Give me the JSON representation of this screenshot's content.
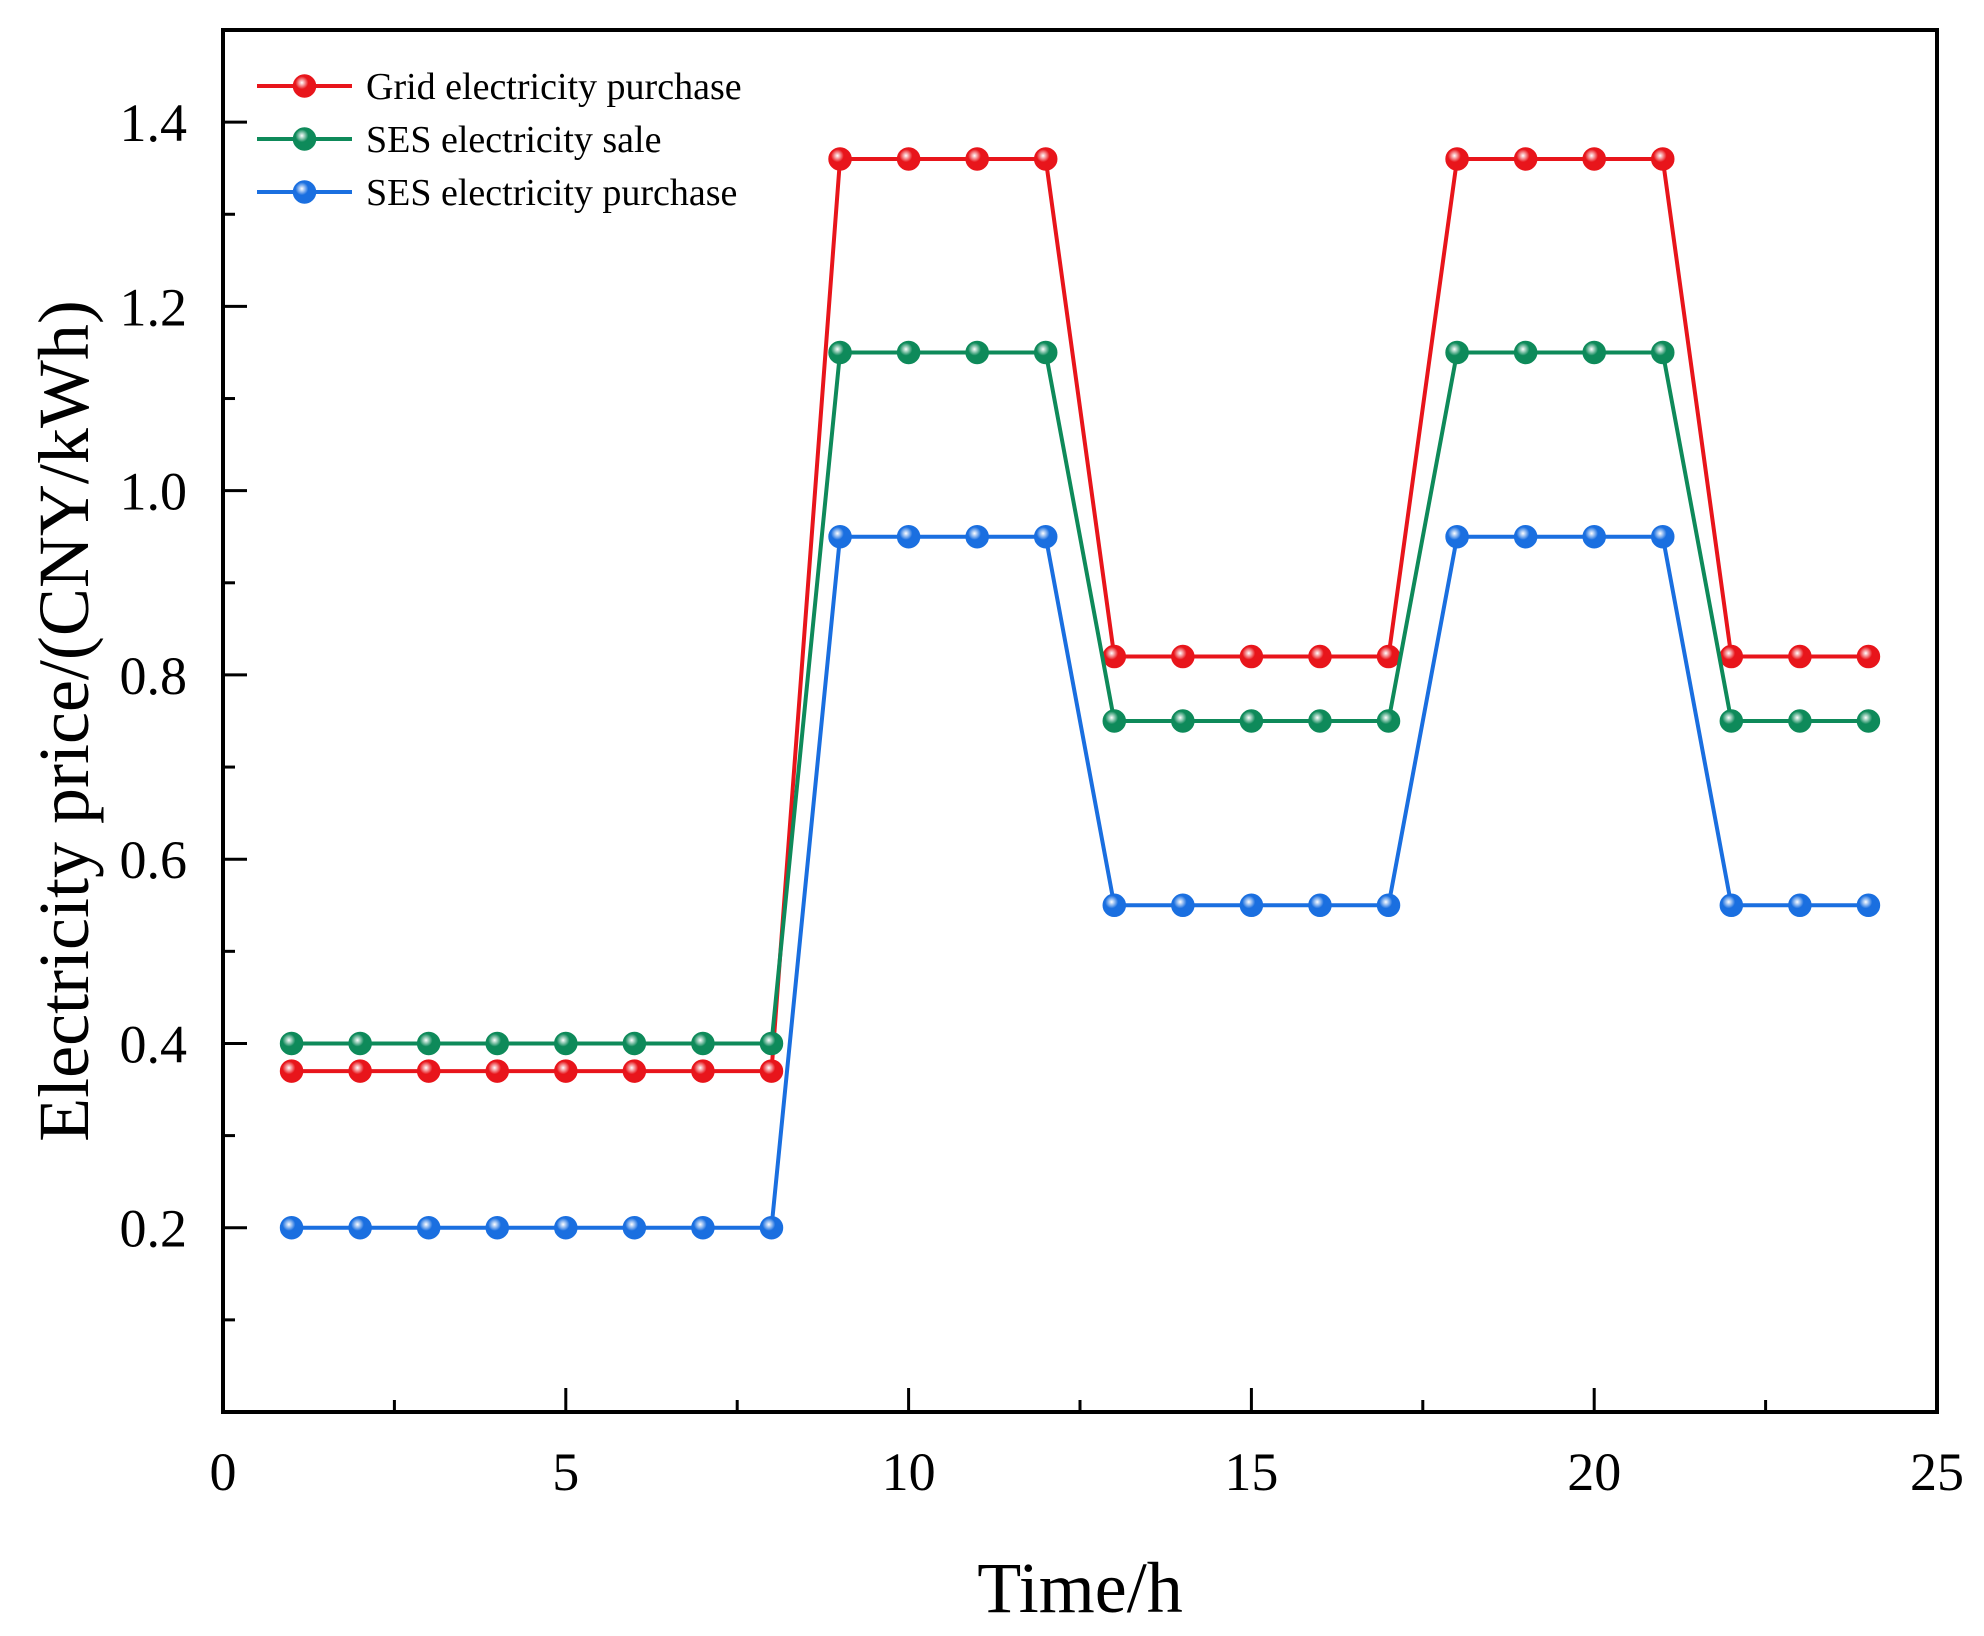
{
  "chart_data": {
    "type": "line",
    "title": "",
    "xlabel": "Time/h",
    "ylabel": "Electricity price/(CNY/kWh)",
    "xlim": [
      0,
      25
    ],
    "ylim": [
      0.0,
      1.5
    ],
    "xticks": [
      0,
      5,
      10,
      15,
      20,
      25
    ],
    "xtick_labels": [
      "0",
      "5",
      "10",
      "15",
      "20",
      "25"
    ],
    "yticks": [
      0.2,
      0.4,
      0.6,
      0.8,
      1.0,
      1.2,
      1.4
    ],
    "ytick_labels": [
      "0.2",
      "0.4",
      "0.6",
      "0.8",
      "1.0",
      "1.2",
      "1.4"
    ],
    "grid": false,
    "legend_position": "top-left",
    "x": [
      1,
      2,
      3,
      4,
      5,
      6,
      7,
      8,
      9,
      10,
      11,
      12,
      13,
      14,
      15,
      16,
      17,
      18,
      19,
      20,
      21,
      22,
      23,
      24
    ],
    "series": [
      {
        "name": "Grid electricity purchase",
        "color": "#e8151b",
        "values": [
          0.37,
          0.37,
          0.37,
          0.37,
          0.37,
          0.37,
          0.37,
          0.37,
          1.36,
          1.36,
          1.36,
          1.36,
          0.82,
          0.82,
          0.82,
          0.82,
          0.82,
          1.36,
          1.36,
          1.36,
          1.36,
          0.82,
          0.82,
          0.82
        ]
      },
      {
        "name": "SES electricity sale",
        "color": "#0e8a5a",
        "values": [
          0.4,
          0.4,
          0.4,
          0.4,
          0.4,
          0.4,
          0.4,
          0.4,
          1.15,
          1.15,
          1.15,
          1.15,
          0.75,
          0.75,
          0.75,
          0.75,
          0.75,
          1.15,
          1.15,
          1.15,
          1.15,
          0.75,
          0.75,
          0.75
        ]
      },
      {
        "name": "SES electricity purchase",
        "color": "#1a6fe0",
        "values": [
          0.2,
          0.2,
          0.2,
          0.2,
          0.2,
          0.2,
          0.2,
          0.2,
          0.95,
          0.95,
          0.95,
          0.95,
          0.55,
          0.55,
          0.55,
          0.55,
          0.55,
          0.95,
          0.95,
          0.95,
          0.95,
          0.55,
          0.55,
          0.55
        ]
      }
    ]
  }
}
